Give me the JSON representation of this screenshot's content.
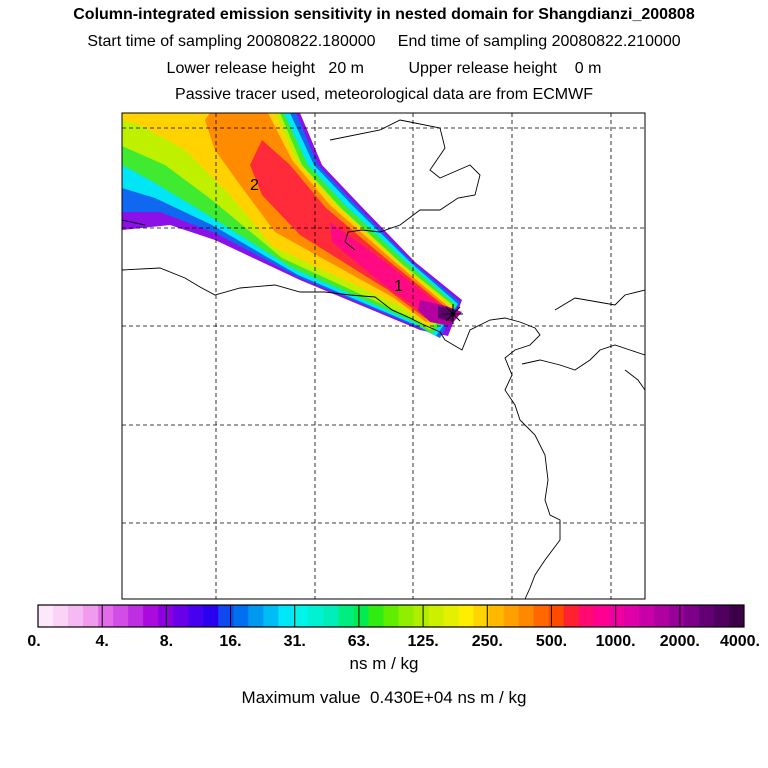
{
  "header": {
    "title": "Column-integrated emission sensitivity in nested domain for Shangdianzi_200808",
    "start_label": "Start time of sampling 20080822.180000",
    "end_label": "End time of sampling 20080822.210000",
    "lower_label": "Lower release height   20 m",
    "upper_label": "Upper release height    0 m",
    "info": "Passive tracer used, meteorological data are from ECMWF"
  },
  "chart_data": {
    "type": "heatmap",
    "title": "Column-integrated emission sensitivity in nested domain for Shangdianzi_200808",
    "point_labels": [
      "1",
      "2"
    ],
    "colorbar": {
      "tick_labels": [
        "0.",
        "4.",
        "8.",
        "16.",
        "31.",
        "63.",
        "125.",
        "250.",
        "500.",
        "1000.",
        "2000.",
        "4000."
      ],
      "tick_values": [
        0,
        4,
        8,
        16,
        31,
        63,
        125,
        250,
        500,
        1000,
        2000,
        4000
      ],
      "colors": [
        "#fde8fb",
        "#fbd3f7",
        "#f7b9f3",
        "#f19bee",
        "#e26be9",
        "#d24de6",
        "#bf2ee3",
        "#aa0adb",
        "#8c00e0",
        "#6a00e8",
        "#4800f0",
        "#2a00f0",
        "#1048f0",
        "#0070f0",
        "#0098f0",
        "#00bcf4",
        "#00e8f8",
        "#00f5e8",
        "#00f2d0",
        "#00efb8",
        "#00ee80",
        "#00ec50",
        "#30ec10",
        "#60ee00",
        "#90ee00",
        "#b0ee00",
        "#ccf000",
        "#e4f000",
        "#ffee00",
        "#ffd400",
        "#ffba00",
        "#ffa000",
        "#ff8800",
        "#ff6800",
        "#ff4a00",
        "#ff2030",
        "#ff0a70",
        "#ff0090",
        "#f000a0",
        "#e000a8",
        "#c800a8",
        "#b000a0",
        "#980098",
        "#7e0088",
        "#640074",
        "#500060",
        "#3c0048"
      ],
      "unit": "ns m / kg",
      "max_label": "Maximum value  0.430E+04 ns m / kg"
    }
  }
}
